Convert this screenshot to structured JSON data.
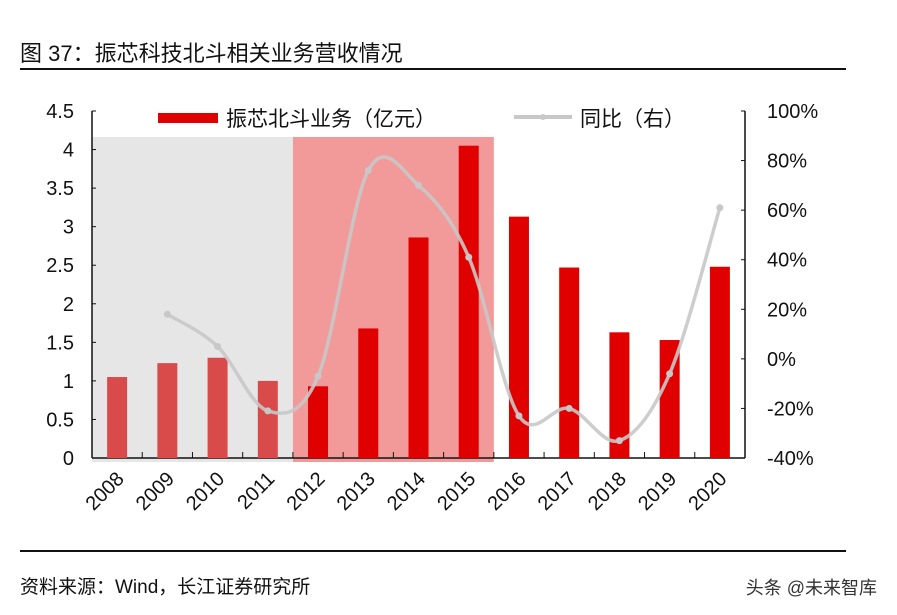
{
  "title": "图 37：振芯科技北斗相关业务营收情况",
  "source": "资料来源：Wind，长江证券研究所",
  "watermark": "头条 @未来智库",
  "colors": {
    "bar": "#E00000",
    "bar_early": "#D94A4A",
    "line": "#C8C8C8",
    "shade_gray": "#E6E6E6",
    "shade_pink": "#F29A9A"
  },
  "chart_data": {
    "type": "bar+line",
    "categories": [
      "2008",
      "2009",
      "2010",
      "2011",
      "2012",
      "2013",
      "2014",
      "2015",
      "2016",
      "2017",
      "2018",
      "2019",
      "2020"
    ],
    "series": [
      {
        "name": "振芯北斗业务（亿元）",
        "type": "bar",
        "axis": "left",
        "values": [
          1.05,
          1.23,
          1.3,
          1.0,
          0.93,
          1.68,
          2.86,
          4.05,
          3.13,
          2.47,
          1.63,
          1.53,
          2.48
        ]
      },
      {
        "name": "同比（右）",
        "type": "line",
        "axis": "right",
        "smooth": true,
        "values": [
          null,
          18,
          5,
          -21,
          -7,
          76,
          70,
          41,
          -23,
          -20,
          -33,
          -6,
          61
        ]
      }
    ],
    "left_axis": {
      "ylim": [
        0,
        4.5
      ],
      "ticks": [
        "0",
        "0.5",
        "1",
        "1.5",
        "2",
        "2.5",
        "3",
        "3.5",
        "4",
        "4.5"
      ]
    },
    "right_axis": {
      "ylim": [
        -40,
        100
      ],
      "ticks": [
        "-40%",
        "-20%",
        "0%",
        "20%",
        "40%",
        "60%",
        "80%",
        "100%"
      ]
    },
    "shaded_ranges": [
      {
        "from": "2008",
        "to": "2011",
        "color": "gray"
      },
      {
        "from": "2012",
        "to": "2015",
        "color": "pink"
      }
    ],
    "legend": "top",
    "grid": false
  }
}
